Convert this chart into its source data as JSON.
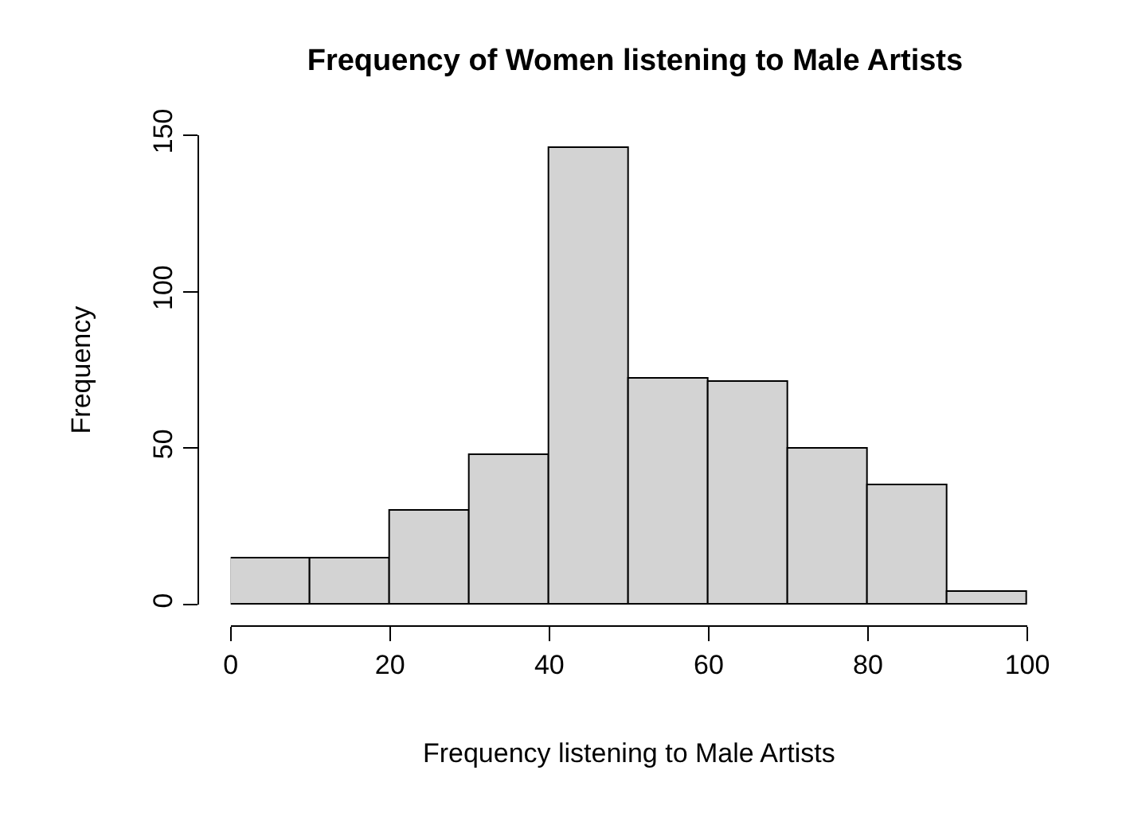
{
  "chart_data": {
    "type": "histogram",
    "title": "Frequency of Women listening to Male Artists",
    "xlabel": "Frequency listening to Male Artists",
    "ylabel": "Frequency",
    "bins": [
      0,
      10,
      20,
      30,
      40,
      50,
      60,
      70,
      80,
      90,
      100
    ],
    "values": [
      15,
      15,
      30,
      48,
      146,
      72,
      71,
      50,
      38,
      4
    ],
    "color": "#d3d3d3",
    "xlim": [
      0,
      100
    ],
    "xticks": [
      0,
      20,
      40,
      60,
      80,
      100
    ],
    "ylim": [
      0,
      150
    ],
    "yticks": [
      0,
      50,
      100,
      150
    ]
  }
}
